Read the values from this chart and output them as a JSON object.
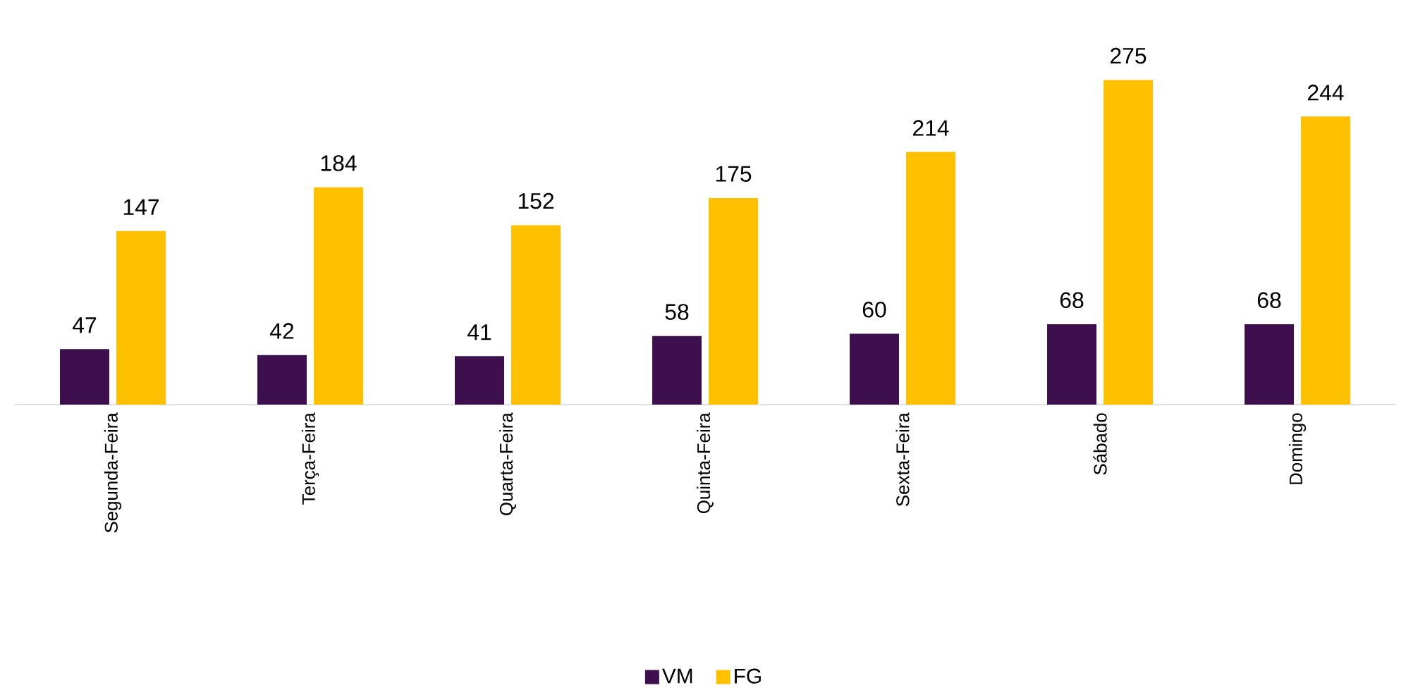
{
  "chart_data": {
    "type": "bar",
    "categories": [
      "Segunda-Feira",
      "Terça-Feira",
      "Quarta-Feira",
      "Quinta-Feira",
      "Sexta-Feira",
      "Sábado",
      "Domingo"
    ],
    "series": [
      {
        "name": "VM",
        "color": "#3d0f4f",
        "values": [
          47,
          42,
          41,
          58,
          60,
          68,
          68
        ]
      },
      {
        "name": "FG",
        "color": "#ffc000",
        "values": [
          147,
          184,
          152,
          175,
          214,
          275,
          244
        ]
      }
    ],
    "data_labels": true,
    "legend": "bottom"
  }
}
